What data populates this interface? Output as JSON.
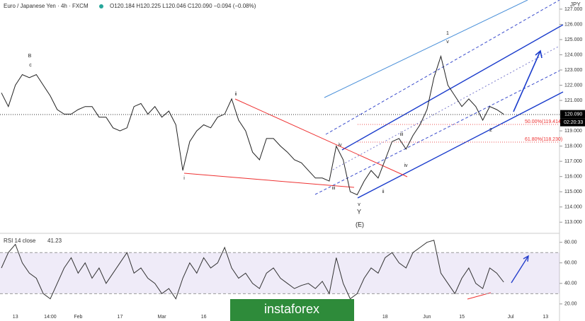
{
  "header": {
    "symbol": "Euro / Japanese Yen · 4h · FXCM",
    "ohlc": "O120.184 H120.225 L120.046 C120.090 −0.094 (−0.08%)",
    "currency": "JPY",
    "last_price": "120.090",
    "countdown": "02:20:33",
    "rsi_title": "RSI 14 close"
  },
  "watermark": "instaforex",
  "annotations": [
    "B",
    "c",
    "ii",
    "i",
    "iii",
    "iv",
    "v",
    "Y",
    "(E)",
    "1",
    "v",
    "2",
    "iii",
    "iv",
    "ii",
    "50.00%(119.414)",
    "61.80%(118.230)"
  ],
  "chart_data": [
    {
      "type": "line",
      "color": "#222222",
      "categories": [
        null,
        null,
        "13",
        null,
        null,
        null,
        null,
        "14:00",
        null,
        null,
        null,
        "Feb",
        null,
        null,
        null,
        null,
        null,
        "17",
        null,
        null,
        null,
        null,
        null,
        "Mar",
        null,
        null,
        null,
        null,
        null,
        "16",
        null,
        null,
        null,
        null,
        null,
        null,
        null,
        null,
        null,
        null,
        null,
        null,
        null,
        null,
        null,
        null,
        null,
        null,
        null,
        null,
        null,
        null,
        null,
        null,
        null,
        "18",
        null,
        null,
        null,
        null,
        null,
        "Jun",
        null,
        null,
        null,
        null,
        "15",
        null,
        null,
        null,
        null,
        null,
        null,
        "Jul",
        null,
        null,
        null,
        null,
        "13",
        null
      ],
      "values": [
        121.5,
        120.6,
        122.0,
        122.7,
        122.5,
        122.7,
        122.0,
        121.3,
        120.4,
        120.1,
        120.1,
        120.4,
        120.6,
        120.6,
        119.9,
        119.9,
        119.2,
        119.0,
        119.2,
        120.6,
        120.8,
        120.1,
        120.6,
        119.9,
        120.3,
        119.4,
        116.4,
        118.3,
        119.0,
        119.4,
        119.2,
        119.9,
        120.1,
        121.1,
        119.7,
        119.0,
        117.6,
        117.1,
        118.5,
        118.5,
        118.0,
        117.6,
        117.1,
        116.9,
        116.4,
        115.9,
        115.9,
        115.7,
        118.0,
        117.1,
        115.0,
        114.8,
        115.7,
        116.4,
        115.9,
        117.1,
        118.3,
        118.5,
        117.8,
        118.7,
        119.4,
        120.4,
        122.5,
        123.9,
        122.0,
        121.3,
        120.6,
        121.1,
        120.6,
        119.7,
        120.6,
        120.4,
        120.09,
        null,
        null,
        null,
        null,
        null,
        null,
        null
      ],
      "ylim": [
        112.5,
        127.6
      ],
      "yticks": [
        {
          "value": 113,
          "label": "113.000"
        },
        {
          "value": 114,
          "label": "114.000"
        },
        {
          "value": 115,
          "label": "115.000"
        },
        {
          "value": 116,
          "label": "116.000"
        },
        {
          "value": 117,
          "label": "117.000"
        },
        {
          "value": 118,
          "label": "118.000"
        },
        {
          "value": 119,
          "label": "119.000"
        },
        {
          "value": 121,
          "label": "121.000"
        },
        {
          "value": 122,
          "label": "122.000"
        },
        {
          "value": 123,
          "label": "123.000"
        },
        {
          "value": 124,
          "label": "124.000"
        },
        {
          "value": 125,
          "label": "125.000"
        },
        {
          "value": 126,
          "label": "126.000"
        },
        {
          "value": 127,
          "label": "127.000"
        }
      ]
    },
    {
      "type": "line",
      "color": "#333333",
      "values": [
        55,
        70,
        78,
        60,
        50,
        45,
        30,
        25,
        40,
        55,
        65,
        50,
        60,
        45,
        55,
        40,
        50,
        60,
        70,
        50,
        55,
        45,
        40,
        30,
        35,
        25,
        45,
        60,
        50,
        65,
        55,
        60,
        75,
        55,
        45,
        50,
        40,
        35,
        50,
        55,
        45,
        40,
        35,
        38,
        40,
        35,
        42,
        30,
        65,
        40,
        25,
        30,
        45,
        55,
        50,
        65,
        70,
        60,
        55,
        70,
        75,
        80,
        82,
        50,
        40,
        30,
        45,
        55,
        40,
        35,
        55,
        50,
        41.23
      ],
      "ylim": [
        13,
        86.7
      ],
      "band": [
        30,
        70
      ],
      "yticks": [
        {
          "value": 20,
          "label": "20.00"
        },
        {
          "value": 40,
          "label": "40.00"
        },
        {
          "value": 60,
          "label": "60.00"
        },
        {
          "value": 80,
          "label": "80.00"
        }
      ]
    }
  ]
}
